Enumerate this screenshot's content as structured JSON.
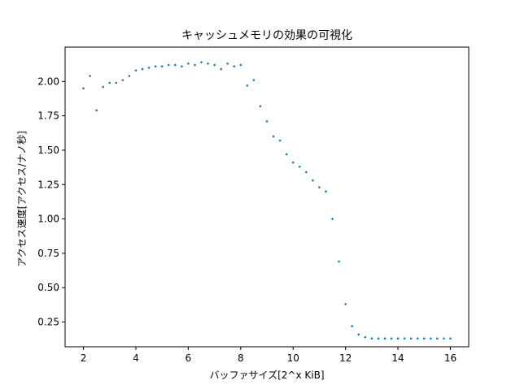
{
  "chart_data": {
    "type": "scatter",
    "title": "キャッシュメモリの効果の可視化",
    "xlabel": "バッファサイズ[2^x KiB]",
    "ylabel": "アクセス速度[アクセス/ナノ秒]",
    "xlim": [
      1.3,
      16.7
    ],
    "ylim": [
      0.07,
      2.25
    ],
    "xticks": [
      2,
      4,
      6,
      8,
      10,
      12,
      14,
      16
    ],
    "xtick_labels": [
      "2",
      "4",
      "6",
      "8",
      "10",
      "12",
      "14",
      "16"
    ],
    "yticks": [
      0.25,
      0.5,
      0.75,
      1.0,
      1.25,
      1.5,
      1.75,
      2.0
    ],
    "ytick_labels": [
      "0.25",
      "0.50",
      "0.75",
      "1.00",
      "1.25",
      "1.50",
      "1.75",
      "2.00"
    ],
    "grid": false,
    "color": "#1f77b4",
    "series": [
      {
        "x": [
          2.0,
          2.25,
          2.5,
          2.75,
          3.0,
          3.25,
          3.5,
          3.75,
          4.0,
          4.25,
          4.5,
          4.75,
          5.0,
          5.25,
          5.5,
          5.75,
          6.0,
          6.25,
          6.5,
          6.75,
          7.0,
          7.25,
          7.5,
          7.75,
          8.0,
          8.25,
          8.5,
          8.75,
          9.0,
          9.25,
          9.5,
          9.75,
          10.0,
          10.25,
          10.5,
          10.75,
          11.0,
          11.25,
          11.5,
          11.75,
          12.0,
          12.25,
          12.5,
          12.75,
          13.0,
          13.25,
          13.5,
          13.75,
          14.0,
          14.25,
          14.5,
          14.75,
          15.0,
          15.25,
          15.5,
          15.75,
          16.0
        ],
        "y": [
          1.95,
          2.04,
          1.79,
          1.96,
          1.99,
          1.99,
          2.01,
          2.04,
          2.08,
          2.09,
          2.1,
          2.11,
          2.11,
          2.12,
          2.12,
          2.11,
          2.13,
          2.12,
          2.14,
          2.13,
          2.12,
          2.09,
          2.13,
          2.11,
          2.12,
          1.97,
          2.01,
          1.82,
          1.71,
          1.6,
          1.57,
          1.47,
          1.41,
          1.38,
          1.34,
          1.28,
          1.23,
          1.2,
          1.0,
          0.69,
          0.38,
          0.22,
          0.16,
          0.14,
          0.13,
          0.13,
          0.13,
          0.13,
          0.13,
          0.13,
          0.13,
          0.13,
          0.13,
          0.13,
          0.13,
          0.13,
          0.13
        ]
      }
    ]
  }
}
